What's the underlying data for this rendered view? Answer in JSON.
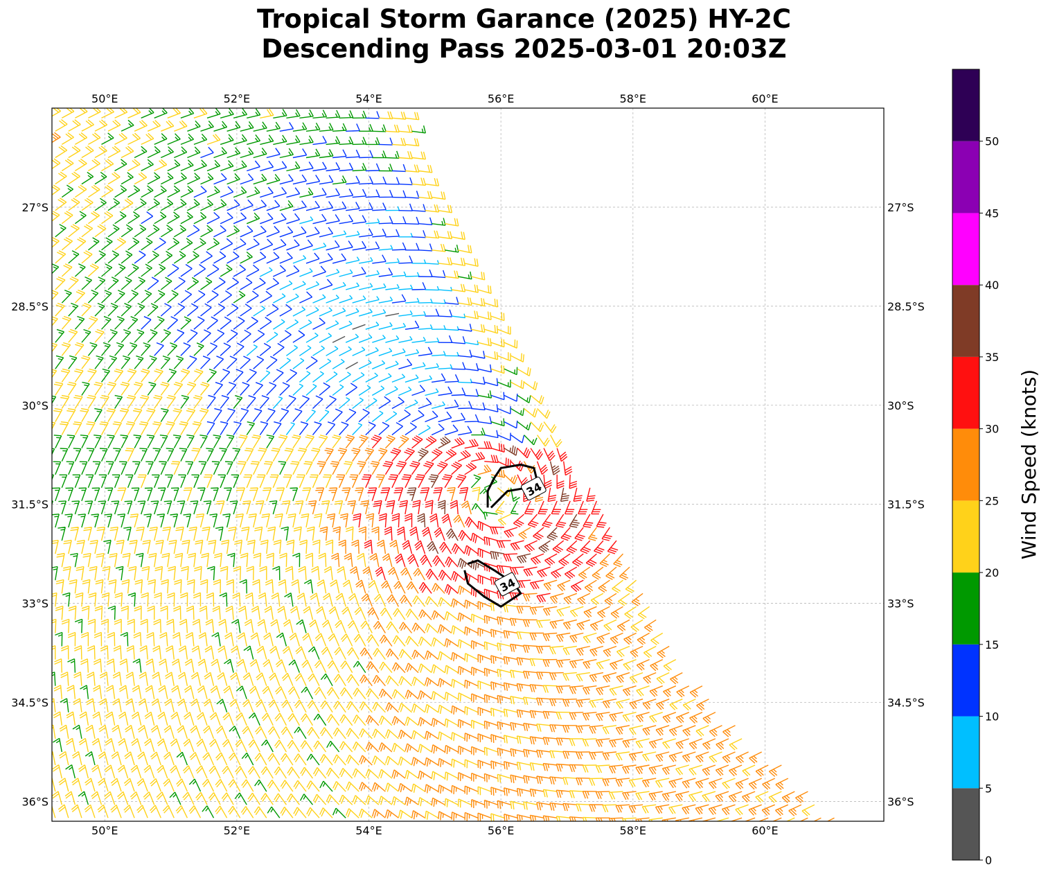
{
  "title": {
    "line1": "Tropical Storm Garance (2025) HY-2C",
    "line2": "Descending Pass 2025-03-01 20:03Z"
  },
  "map": {
    "lon_range": [
      49.2,
      61.8
    ],
    "lat_range": [
      -36.3,
      -25.5
    ],
    "lon_ticks": [
      {
        "value": 50,
        "label": "50°E"
      },
      {
        "value": 52,
        "label": "52°E"
      },
      {
        "value": 54,
        "label": "54°E"
      },
      {
        "value": 56,
        "label": "56°E"
      },
      {
        "value": 58,
        "label": "58°E"
      },
      {
        "value": 60,
        "label": "60°E"
      }
    ],
    "lat_ticks": [
      {
        "value": -27,
        "label": "27°S"
      },
      {
        "value": -28.5,
        "label": "28.5°S"
      },
      {
        "value": -30,
        "label": "30°S"
      },
      {
        "value": -31.5,
        "label": "31.5°S"
      },
      {
        "value": -33,
        "label": "33°S"
      },
      {
        "value": -34.5,
        "label": "34.5°S"
      },
      {
        "value": -36,
        "label": "36°S"
      }
    ],
    "gridlines": true,
    "swath_edge": [
      [
        54.5,
        -25.5
      ],
      [
        55.8,
        -28.5
      ],
      [
        57.5,
        -31.5
      ],
      [
        59.2,
        -34.5
      ],
      [
        61.2,
        -36.3
      ]
    ],
    "storm_center": [
      55.9,
      -31.4
    ],
    "contours": [
      {
        "level": 34,
        "label": "34",
        "path": [
          [
            55.8,
            -31.55
          ],
          [
            55.8,
            -31.3
          ],
          [
            55.9,
            -31.1
          ],
          [
            56.0,
            -30.95
          ],
          [
            56.3,
            -30.9
          ],
          [
            56.5,
            -30.95
          ],
          [
            56.55,
            -31.15
          ],
          [
            56.4,
            -31.25
          ],
          [
            56.1,
            -31.3
          ],
          [
            55.85,
            -31.55
          ]
        ]
      },
      {
        "level": 34,
        "label": "34",
        "path": [
          [
            55.5,
            -32.4
          ],
          [
            55.65,
            -32.35
          ],
          [
            55.9,
            -32.5
          ],
          [
            56.2,
            -32.7
          ],
          [
            56.3,
            -32.85
          ],
          [
            56.0,
            -33.05
          ],
          [
            55.75,
            -32.9
          ],
          [
            55.5,
            -32.7
          ],
          [
            55.45,
            -32.5
          ]
        ]
      }
    ]
  },
  "wind_barbs_note_units": "knots",
  "colorbar": {
    "label": "Wind Speed (knots)",
    "bins": [
      {
        "min": 0,
        "max": 5,
        "color": "#555555"
      },
      {
        "min": 5,
        "max": 10,
        "color": "#00bfff"
      },
      {
        "min": 10,
        "max": 15,
        "color": "#0033ff"
      },
      {
        "min": 15,
        "max": 20,
        "color": "#009900"
      },
      {
        "min": 20,
        "max": 25,
        "color": "#ffd21a"
      },
      {
        "min": 25,
        "max": 30,
        "color": "#ff8c0a"
      },
      {
        "min": 30,
        "max": 35,
        "color": "#ff1010"
      },
      {
        "min": 35,
        "max": 40,
        "color": "#7f3b26"
      },
      {
        "min": 40,
        "max": 45,
        "color": "#ff00ff"
      },
      {
        "min": 45,
        "max": 50,
        "color": "#8b00b3"
      },
      {
        "min": 50,
        "max": 55,
        "color": "#2e0055"
      }
    ],
    "tick_labels": [
      "0",
      "5",
      "10",
      "15",
      "20",
      "25",
      "30",
      "35",
      "40",
      "45",
      "50"
    ]
  }
}
